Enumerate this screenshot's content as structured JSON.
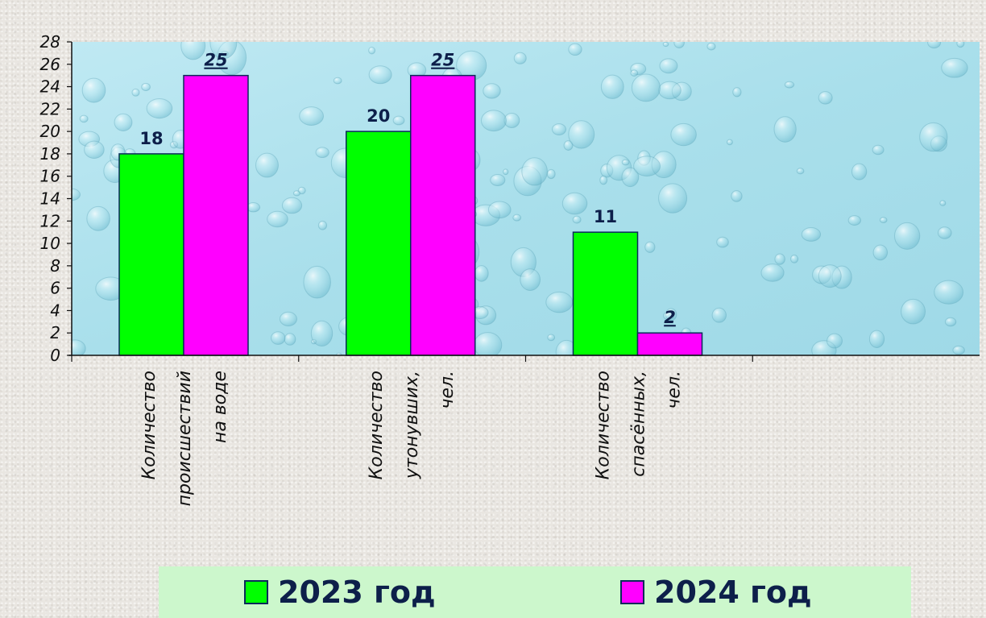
{
  "chart_data": {
    "type": "bar",
    "categories": [
      [
        "Количество",
        "происшествий",
        "на воде"
      ],
      [
        "Количество",
        "утонувших,",
        "чел."
      ],
      [
        "Количество",
        "спасённых,",
        "чел."
      ]
    ],
    "series": [
      {
        "name": "2023 год",
        "color": "#00ff00",
        "values": [
          18,
          20,
          11
        ],
        "labels": [
          "18",
          "20",
          "11"
        ]
      },
      {
        "name": "2024 год",
        "color": "#ff00ff",
        "values": [
          25,
          25,
          2
        ],
        "labels": [
          "25",
          "25",
          "2"
        ]
      }
    ],
    "ylim": [
      0,
      28
    ],
    "yticks": [
      "0",
      "2",
      "4",
      "6",
      "8",
      "10",
      "12",
      "14",
      "16",
      "18",
      "20",
      "22",
      "24",
      "26",
      "28"
    ],
    "grid": false,
    "legend_position": "bottom"
  }
}
